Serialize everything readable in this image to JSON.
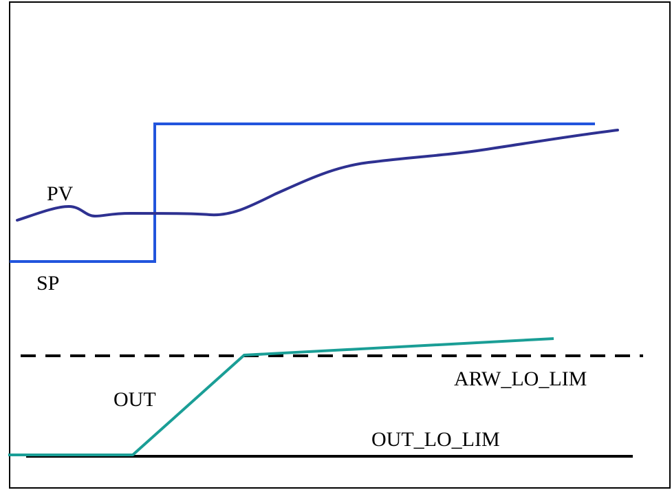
{
  "diagram": {
    "labels": {
      "pv": "PV",
      "sp": "SP",
      "out": "OUT",
      "arw_lo_lim": "ARW_LO_LIM",
      "out_lo_lim": "OUT_LO_LIM"
    },
    "colors": {
      "sp_line": "#2255dd",
      "pv_line": "#2e3191",
      "out_line": "#1a9e96",
      "limit_lines": "#000000",
      "frame": "#000000"
    },
    "limit_styles": {
      "arw_lo_lim": "dashed",
      "out_lo_lim": "solid"
    }
  }
}
